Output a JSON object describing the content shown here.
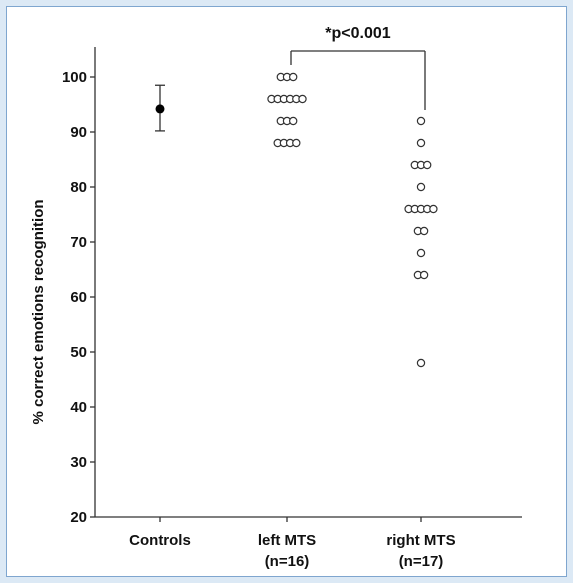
{
  "chart_data": {
    "type": "scatter",
    "title": "",
    "ylabel": "% correct emotions recognition",
    "ylim": [
      20,
      105
    ],
    "yticks": [
      20,
      30,
      40,
      50,
      60,
      70,
      80,
      90,
      100
    ],
    "grid": false,
    "categories": [
      {
        "key": "controls",
        "lines": [
          "Controls"
        ]
      },
      {
        "key": "left",
        "lines": [
          "left MTS",
          "(n=16)"
        ]
      },
      {
        "key": "right",
        "lines": [
          "right MTS",
          "(n=17)"
        ]
      }
    ],
    "controls": {
      "mean": 94.2,
      "upper": 98.5,
      "lower": 90.2
    },
    "series": [
      {
        "category": "left",
        "values": [
          100,
          100,
          100,
          96,
          96,
          96,
          96,
          96,
          96,
          92,
          92,
          92,
          88,
          88,
          88,
          88
        ]
      },
      {
        "category": "right",
        "values": [
          92,
          88,
          84,
          84,
          84,
          80,
          76,
          76,
          76,
          76,
          76,
          72,
          72,
          68,
          64,
          64,
          48
        ]
      }
    ],
    "significance": {
      "label": "*p<0.001",
      "between": [
        "left",
        "right"
      ]
    }
  }
}
